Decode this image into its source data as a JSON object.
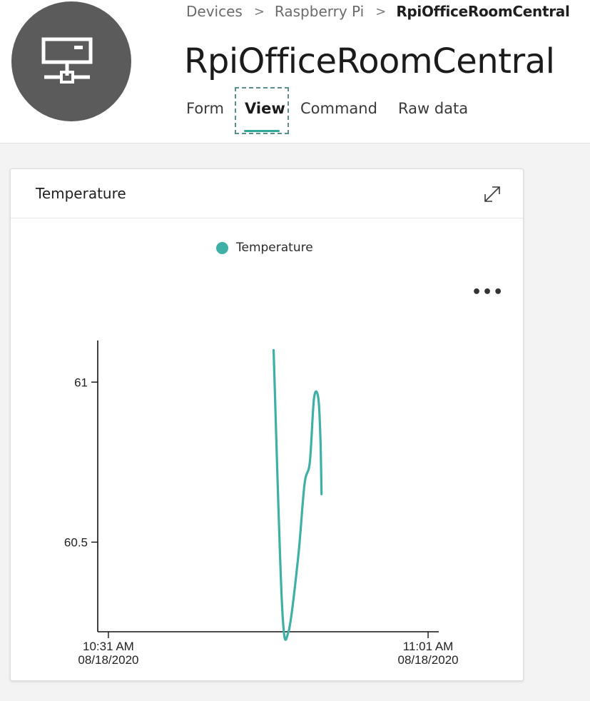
{
  "breadcrumb": {
    "items": [
      "Devices",
      "Raspberry Pi",
      "RpiOfficeRoomCentral"
    ],
    "separator": ">"
  },
  "device": {
    "name": "RpiOfficeRoomCentral",
    "icon": "device-icon"
  },
  "tabs": [
    {
      "label": "Form",
      "active": false
    },
    {
      "label": "View",
      "active": true
    },
    {
      "label": "Command",
      "active": false
    },
    {
      "label": "Raw data",
      "active": false
    }
  ],
  "card": {
    "title": "Temperature",
    "expand_icon": "expand-icon",
    "more_icon": "more-options-icon",
    "more_label": "•••"
  },
  "colors": {
    "accent": "#2fa79a",
    "series": "#3fb0a6",
    "avatar_bg": "#5b5b5b"
  },
  "chart_data": {
    "type": "line",
    "title": "",
    "legend": {
      "position": "top-center",
      "entries": [
        "Temperature"
      ]
    },
    "xlabel": "",
    "ylabel": "",
    "x_ticks": [
      {
        "label": [
          "10:31 AM",
          "08/18/2020"
        ],
        "minute": 0
      },
      {
        "label": [
          "11:01 AM",
          "08/18/2020"
        ],
        "minute": 30
      }
    ],
    "xlim": [
      -1,
      31
    ],
    "ylim": [
      60.22,
      61.13
    ],
    "y_ticks": [
      {
        "label": "61",
        "value": 61
      },
      {
        "label": "60.5",
        "value": 60.5
      }
    ],
    "grid": false,
    "series": [
      {
        "name": "Temperature",
        "color": "#3fb0a6",
        "points": [
          [
            15.5,
            61.1
          ],
          [
            16.3,
            60.3
          ],
          [
            16.9,
            60.22
          ],
          [
            17.8,
            60.45
          ],
          [
            18.4,
            60.68
          ],
          [
            18.9,
            60.75
          ],
          [
            19.3,
            60.95
          ],
          [
            19.7,
            60.95
          ],
          [
            19.9,
            60.82
          ],
          [
            20.0,
            60.65
          ]
        ]
      }
    ]
  }
}
